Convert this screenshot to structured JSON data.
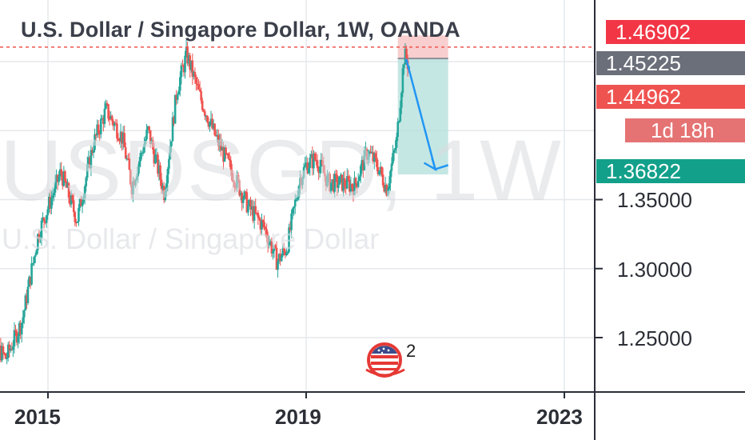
{
  "title": "U.S. Dollar / Singapore Dollar, 1W, OANDA",
  "watermark": {
    "symbol": "USDSGD, 1W",
    "name": "U.S. Dollar / Singapore Dollar"
  },
  "colors": {
    "up": "#26a69a",
    "down": "#ef5350",
    "grid": "#e6e8ec",
    "target_zone": "#b2dfdb",
    "stop_zone": "#f8c9c9",
    "arrow": "#2196f3",
    "dashed_line": "#ef5350"
  },
  "price_labels": {
    "stop": "1.46902",
    "entry": "1.45225",
    "last": "1.44962",
    "countdown": "1d 18h",
    "target": "1.36822"
  },
  "badge": {
    "icon": "us-flag-icon",
    "count": "2"
  },
  "chart_data": {
    "type": "candlestick",
    "timeframe": "1W",
    "symbol": "USDSGD",
    "y_ticks": [
      "1.25000",
      "1.30000",
      "1.35000"
    ],
    "x_ticks": [
      "2015",
      "2019",
      "2023"
    ],
    "ylim": [
      1.23,
      1.47
    ],
    "xlim": [
      2014.0,
      2023.1
    ],
    "path_close": [
      [
        2014.0,
        1.248
      ],
      [
        2014.2,
        1.243
      ],
      [
        2014.35,
        1.235
      ],
      [
        2014.6,
        1.262
      ],
      [
        2014.85,
        1.325
      ],
      [
        2015.2,
        1.37
      ],
      [
        2015.45,
        1.335
      ],
      [
        2015.7,
        1.39
      ],
      [
        2015.9,
        1.415
      ],
      [
        2016.15,
        1.395
      ],
      [
        2016.3,
        1.36
      ],
      [
        2016.55,
        1.4
      ],
      [
        2016.8,
        1.355
      ],
      [
        2017.0,
        1.43
      ],
      [
        2017.15,
        1.455
      ],
      [
        2017.35,
        1.425
      ],
      [
        2017.6,
        1.395
      ],
      [
        2017.85,
        1.37
      ],
      [
        2018.1,
        1.345
      ],
      [
        2018.35,
        1.33
      ],
      [
        2018.55,
        1.305
      ],
      [
        2018.7,
        1.315
      ],
      [
        2018.9,
        1.365
      ],
      [
        2019.0,
        1.375
      ],
      [
        2019.15,
        1.38
      ],
      [
        2019.35,
        1.362
      ],
      [
        2019.55,
        1.362
      ],
      [
        2019.75,
        1.36
      ],
      [
        2019.95,
        1.385
      ],
      [
        2020.1,
        1.375
      ],
      [
        2020.25,
        1.358
      ],
      [
        2020.4,
        1.392
      ],
      [
        2020.52,
        1.455
      ],
      [
        2020.6,
        1.446
      ]
    ],
    "position": {
      "type": "short",
      "entry": 1.45225,
      "stop": 1.46902,
      "target": 1.36822,
      "x_start": 2020.42,
      "x_end": 2021.2
    },
    "projection_arrow": [
      [
        2020.55,
        1.452
      ],
      [
        2021.0,
        1.372
      ],
      [
        2021.2,
        1.375
      ]
    ],
    "dashed_level": 1.4605
  }
}
